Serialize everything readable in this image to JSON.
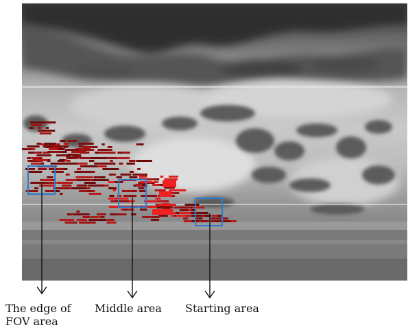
{
  "figure": {
    "labels": {
      "edge_line1": "The edge of",
      "edge_line2": "FOV area",
      "middle": "Middle area",
      "starting": "Starting area"
    },
    "box_color": "#2e7bc9",
    "arrow_color": "#111111",
    "detection_color": "#c01616",
    "sky_color": "#3a3a3a",
    "ground_color": "#6e6e6e"
  }
}
